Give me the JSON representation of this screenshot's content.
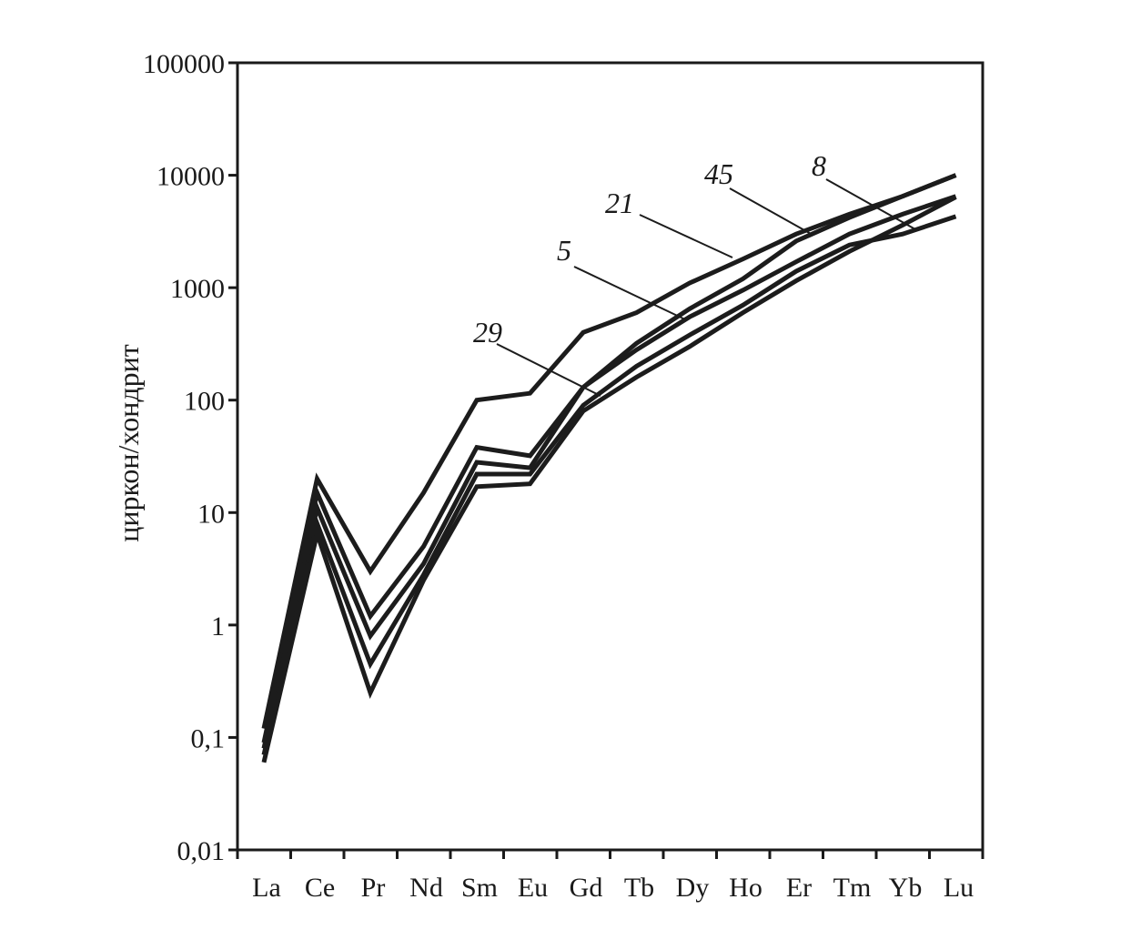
{
  "chart_data": {
    "type": "line",
    "ylabel": "циркон/хондрит",
    "xlabel": "",
    "y_scale": "log",
    "ylim": [
      0.01,
      100000
    ],
    "y_ticks": [
      0.01,
      0.1,
      1,
      10,
      100,
      1000,
      10000,
      100000
    ],
    "y_tick_labels": [
      "0,01",
      "0,1",
      "1",
      "10",
      "100",
      "1000",
      "10000",
      "100000"
    ],
    "categories": [
      "La",
      "Ce",
      "Pr",
      "Nd",
      "Sm",
      "Eu",
      "Gd",
      "Tb",
      "Dy",
      "Ho",
      "Er",
      "Tm",
      "Yb",
      "Lu"
    ],
    "series": [
      {
        "name": "21",
        "values": [
          0.12,
          20,
          3,
          15,
          100,
          115,
          400,
          600,
          1100,
          1800,
          3000,
          4500,
          6500,
          10000
        ]
      },
      {
        "name": "45",
        "values": [
          0.09,
          15,
          1.2,
          5,
          38,
          32,
          130,
          320,
          650,
          1200,
          2600,
          4200,
          6500,
          10000
        ]
      },
      {
        "name": "5",
        "values": [
          0.08,
          11,
          0.8,
          3.5,
          28,
          25,
          130,
          280,
          550,
          950,
          1700,
          3000,
          4500,
          6500
        ]
      },
      {
        "name": "8",
        "values": [
          0.07,
          8,
          0.45,
          2.8,
          22,
          22,
          90,
          200,
          380,
          700,
          1400,
          2400,
          3000,
          4300
        ]
      },
      {
        "name": "29",
        "values": [
          0.06,
          6.5,
          0.25,
          2.5,
          17,
          18,
          80,
          160,
          300,
          600,
          1150,
          2100,
          3600,
          6400
        ]
      }
    ],
    "annotations": [
      {
        "text": "29",
        "series": "29"
      },
      {
        "text": "5",
        "series": "5"
      },
      {
        "text": "21",
        "series": "21"
      },
      {
        "text": "45",
        "series": "45"
      },
      {
        "text": "8",
        "series": "8"
      }
    ],
    "grid": false,
    "legend": "none"
  }
}
